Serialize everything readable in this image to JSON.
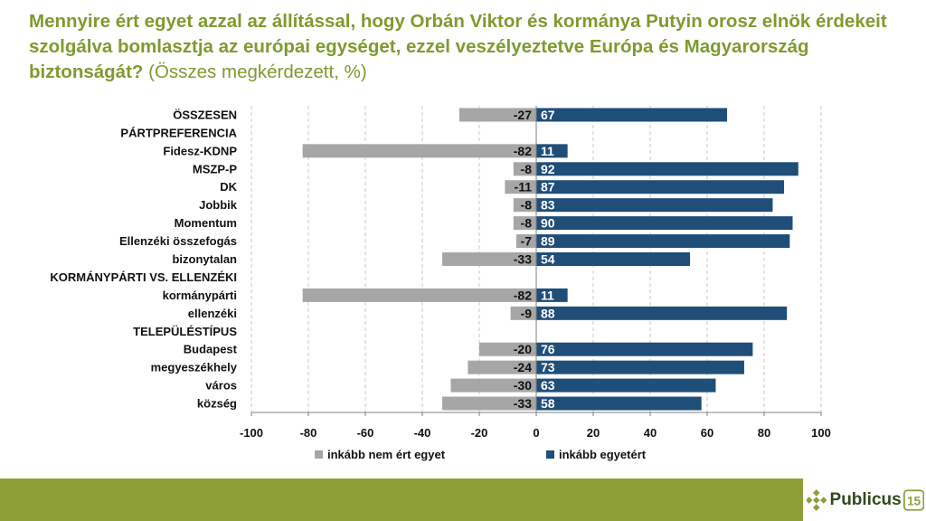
{
  "header": {
    "title": "Mennyire ért egyet azzal az állítással, hogy Orbán Viktor és kormánya Putyin orosz elnök érdekeit szolgálva bomlasztja az európai egységet, ezzel veszélyeztetve Európa és Magyarország biztonságát?",
    "subtitle": "(Összes megkérdezett, %)"
  },
  "colors": {
    "title": "#7f9a2e",
    "disagree": "#a6a6a6",
    "agree": "#1f4e79",
    "footer": "#8e9f3a"
  },
  "chart_data": {
    "type": "bar",
    "orientation": "horizontal",
    "categories": [
      "ÖSSZESEN",
      "PÁRTPREFERENCIA",
      "Fidesz-KDNP",
      "MSZP-P",
      "DK",
      "Jobbik",
      "Momentum",
      "Ellenzéki összefogás",
      "bizonytalan",
      "KORMÁNYPÁRTI VS. ELLENZÉKI",
      "kormánypárti",
      "ellenzéki",
      "TELEPÜLÉSTÍPUS",
      "Budapest",
      "megyeszékhely",
      "város",
      "község"
    ],
    "series": [
      {
        "name": "inkább nem ért egyet",
        "values": [
          -27,
          null,
          -82,
          -8,
          -11,
          -8,
          -8,
          -7,
          -33,
          null,
          -82,
          -9,
          null,
          -20,
          -24,
          -30,
          -33
        ]
      },
      {
        "name": "inkább egyetért",
        "values": [
          67,
          null,
          11,
          92,
          87,
          83,
          90,
          89,
          54,
          null,
          11,
          88,
          null,
          76,
          73,
          63,
          58
        ]
      }
    ],
    "xlim": [
      -100,
      100
    ],
    "xticks": [
      -100,
      -80,
      -60,
      -40,
      -20,
      0,
      20,
      40,
      60,
      80,
      100
    ],
    "grid": "vertical dashed",
    "legend_position": "bottom"
  },
  "brand": {
    "name": "Publicus",
    "badge": "15"
  }
}
